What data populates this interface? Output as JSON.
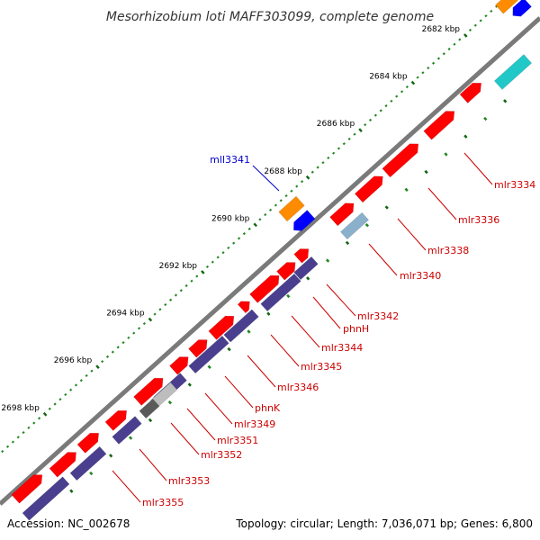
{
  "title": "Mesorhizobium loti MAFF303099, complete genome",
  "footer": {
    "accession": "Accession: NC_002678",
    "summary": "Topology: circular; Length: 7,036,071 bp; Genes: 6,800"
  },
  "colors": {
    "backbone": "#7a7a7a",
    "cds_forward": "#ff0000",
    "cds_reverse": "#0000ff",
    "operon_bar": "#4a3f8f",
    "cyan_feature": "#22c8c8",
    "orange_feature": "#ff8c00",
    "label_forward": "#cc0000",
    "label_reverse": "#0000cc",
    "tick_minor": "#228822",
    "tick_major": "#116611"
  },
  "ticks": [
    {
      "label": "2682 kbp",
      "kbp": 2682
    },
    {
      "label": "2684 kbp",
      "kbp": 2684
    },
    {
      "label": "2686 kbp",
      "kbp": 2686
    },
    {
      "label": "2688 kbp",
      "kbp": 2688
    },
    {
      "label": "2690 kbp",
      "kbp": 2690
    },
    {
      "label": "2692 kbp",
      "kbp": 2692
    },
    {
      "label": "2694 kbp",
      "kbp": 2694
    },
    {
      "label": "2696 kbp",
      "kbp": 2696
    },
    {
      "label": "2698 kbp",
      "kbp": 2698
    }
  ],
  "genes_labeled": [
    {
      "name": "mll3341",
      "strand": "reverse"
    },
    {
      "name": "mlr3334",
      "strand": "forward"
    },
    {
      "name": "mlr3336",
      "strand": "forward"
    },
    {
      "name": "mlr3338",
      "strand": "forward"
    },
    {
      "name": "mlr3340",
      "strand": "forward"
    },
    {
      "name": "mlr3342",
      "strand": "forward"
    },
    {
      "name": "phnH",
      "strand": "forward"
    },
    {
      "name": "mlr3344",
      "strand": "forward"
    },
    {
      "name": "mlr3345",
      "strand": "forward"
    },
    {
      "name": "mlr3346",
      "strand": "forward"
    },
    {
      "name": "phnK",
      "strand": "forward"
    },
    {
      "name": "mlr3349",
      "strand": "forward"
    },
    {
      "name": "mlr3351",
      "strand": "forward"
    },
    {
      "name": "mlr3352",
      "strand": "forward"
    },
    {
      "name": "mlr3353",
      "strand": "forward"
    },
    {
      "name": "mlr3355",
      "strand": "forward"
    }
  ]
}
